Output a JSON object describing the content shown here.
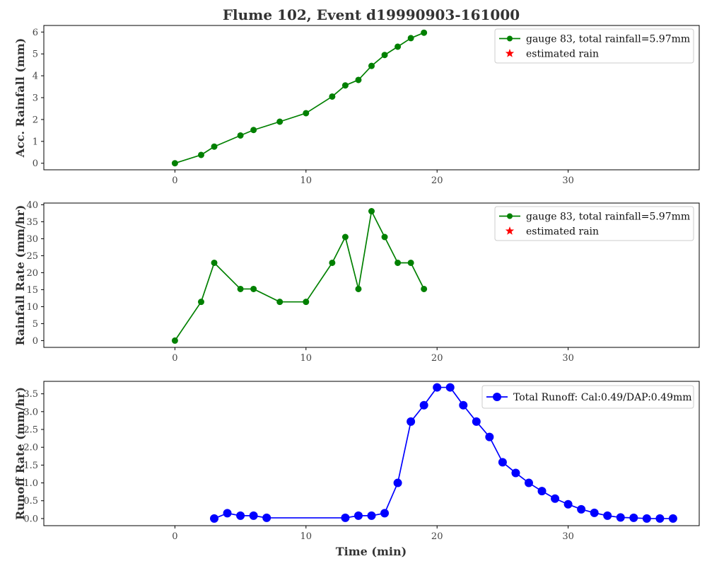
{
  "chart_data": {
    "title": "Flume 102, Event d19990903-161000",
    "xlabel": "Time (min)",
    "colors": {
      "rainfall": "#008000",
      "estimated": "#ff0000",
      "runoff": "#0000ff"
    },
    "panels": [
      {
        "type": "line",
        "ylabel": "Acc. Rainfall (mm)",
        "xlim": [
          -10,
          40
        ],
        "ylim": [
          -0.3,
          6.3
        ],
        "xticks": [
          0,
          10,
          20,
          30
        ],
        "yticks": [
          0,
          1,
          2,
          3,
          4,
          5,
          6
        ],
        "legend_position": "top-right",
        "grid": false,
        "series": [
          {
            "name": "gauge 83, total rainfall=5.97mm",
            "marker": "circle",
            "color": "#008000",
            "x": [
              0,
              2,
              3,
              5,
              6,
              8,
              10,
              12,
              13,
              14,
              15,
              16,
              17,
              18,
              19
            ],
            "y": [
              0,
              0.38,
              0.76,
              1.27,
              1.52,
              1.9,
              2.29,
              3.05,
              3.56,
              3.81,
              4.45,
              4.95,
              5.33,
              5.72,
              5.97
            ]
          },
          {
            "name": "estimated rain",
            "marker": "star",
            "color": "#ff0000",
            "x": [],
            "y": []
          }
        ]
      },
      {
        "type": "line",
        "ylabel": "Rainfall Rate (mm/hr)",
        "xlim": [
          -10,
          40
        ],
        "ylim": [
          -2,
          40.5
        ],
        "xticks": [
          0,
          10,
          20,
          30
        ],
        "yticks": [
          0,
          5,
          10,
          15,
          20,
          25,
          30,
          35,
          40
        ],
        "legend_position": "top-right",
        "grid": false,
        "series": [
          {
            "name": "gauge 83, total rainfall=5.97mm",
            "marker": "circle",
            "color": "#008000",
            "x": [
              0,
              2,
              3,
              5,
              6,
              8,
              10,
              12,
              13,
              14,
              15,
              16,
              17,
              18,
              19
            ],
            "y": [
              0,
              11.4,
              22.9,
              15.2,
              15.2,
              11.4,
              11.4,
              22.9,
              30.5,
              15.2,
              38.1,
              30.5,
              22.9,
              22.9,
              15.2
            ]
          },
          {
            "name": "estimated rain",
            "marker": "star",
            "color": "#ff0000",
            "x": [],
            "y": []
          }
        ]
      },
      {
        "type": "line",
        "ylabel": "Runoff Rate (mm/hr)",
        "xlim": [
          -10,
          40
        ],
        "ylim": [
          -0.2,
          3.85
        ],
        "xticks": [
          0,
          10,
          20,
          30
        ],
        "yticks": [
          0.0,
          0.5,
          1.0,
          1.5,
          2.0,
          2.5,
          3.0,
          3.5
        ],
        "ytick_labels": [
          "0.0",
          "0.5",
          "1.0",
          "1.5",
          "2.0",
          "2.5",
          "3.0",
          "3.5"
        ],
        "legend_position": "top-right",
        "grid": false,
        "series": [
          {
            "name": "Total Runoff: Cal:0.49/DAP:0.49mm",
            "marker": "circle",
            "color": "#0000ff",
            "x": [
              3,
              4,
              5,
              6,
              7,
              13,
              14,
              15,
              16,
              17,
              18,
              19,
              20,
              21,
              22,
              23,
              24,
              25,
              26,
              27,
              28,
              29,
              30,
              31,
              32,
              33,
              34,
              35,
              36,
              37,
              38
            ],
            "y": [
              0,
              0.15,
              0.08,
              0.08,
              0.02,
              0.02,
              0.08,
              0.08,
              0.15,
              1.0,
              2.72,
              3.18,
              3.68,
              3.68,
              3.18,
              2.72,
              2.29,
              1.58,
              1.28,
              1.0,
              0.77,
              0.56,
              0.4,
              0.26,
              0.16,
              0.08,
              0.03,
              0.02,
              0.0,
              0.0,
              0.0
            ]
          }
        ]
      }
    ]
  }
}
